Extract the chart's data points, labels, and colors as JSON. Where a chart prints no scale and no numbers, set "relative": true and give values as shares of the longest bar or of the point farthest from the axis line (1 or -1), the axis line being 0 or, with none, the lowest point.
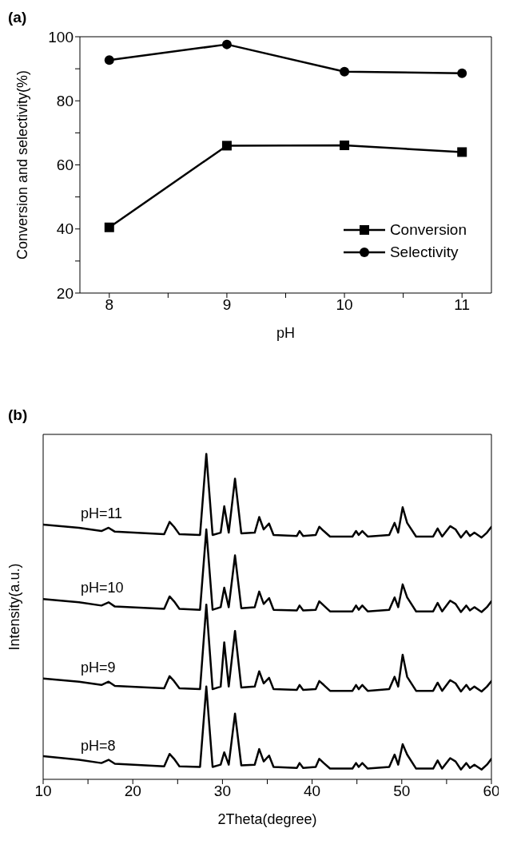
{
  "chart_data": [
    {
      "type": "line",
      "title": "(a)",
      "xlabel": "pH",
      "ylabel": "Conversion and selectivity(%)",
      "x": [
        8,
        9,
        10,
        11
      ],
      "series": [
        {
          "name": "Conversion",
          "color": "#000000",
          "marker": "square",
          "values": [
            40.5,
            66,
            66.1,
            64
          ]
        },
        {
          "name": "Selectivity",
          "color": "#000000",
          "marker": "circle",
          "values": [
            92.7,
            97.6,
            89.1,
            88.6
          ]
        }
      ],
      "xlim": [
        7.75,
        11.25
      ],
      "xticks": [
        8,
        {
          "value": 8.5,
          "label": null
        },
        9,
        {
          "value": 9.5,
          "label": null
        },
        10,
        {
          "value": 10.5,
          "label": null
        },
        11
      ],
      "ylim": [
        20,
        100
      ],
      "yticks": [
        20,
        {
          "value": 30,
          "label": null
        },
        40,
        {
          "value": 50,
          "label": null
        },
        60,
        {
          "value": 70,
          "label": null
        },
        80,
        {
          "value": 90,
          "label": null
        },
        100
      ],
      "legend": "right",
      "line_style": "solid"
    },
    {
      "type": "line",
      "title": "(b)",
      "xlabel": "2Theta(degree)",
      "ylabel": "Intensity(a.u.)",
      "relative": true,
      "marker": "none",
      "line_style": "solid",
      "legend": false,
      "x": [
        10,
        14,
        16.5,
        17.3,
        18,
        23.5,
        24.1,
        24.6,
        25.2,
        27.5,
        28.2,
        28.9,
        29.8,
        30.2,
        30.7,
        31.4,
        32.1,
        33.6,
        34.1,
        34.6,
        35.2,
        35.7,
        38.3,
        38.6,
        39,
        40.4,
        40.8,
        41.3,
        42,
        44.5,
        44.9,
        45.2,
        45.6,
        46.2,
        48.6,
        49.2,
        49.6,
        50.1,
        50.6,
        51.6,
        53.5,
        54,
        54.5,
        55.4,
        56,
        56.6,
        57.2,
        57.6,
        58.1,
        58.9,
        59.5,
        60
      ],
      "series": [
        {
          "name": "pH=8",
          "color": "#000000",
          "values": [
            0.071,
            0.06,
            0.05,
            0.06,
            0.048,
            0.04,
            0.078,
            0.063,
            0.04,
            0.038,
            0.285,
            0.038,
            0.045,
            0.083,
            0.045,
            0.202,
            0.043,
            0.045,
            0.093,
            0.055,
            0.073,
            0.038,
            0.035,
            0.05,
            0.035,
            0.038,
            0.063,
            0.05,
            0.033,
            0.033,
            0.05,
            0.038,
            0.05,
            0.033,
            0.038,
            0.076,
            0.045,
            0.108,
            0.076,
            0.033,
            0.033,
            0.058,
            0.033,
            0.065,
            0.055,
            0.03,
            0.05,
            0.035,
            0.045,
            0.03,
            0.045,
            0.063
          ]
        },
        {
          "name": "pH=9",
          "color": "#000000",
          "values": [
            0.31,
            0.3,
            0.29,
            0.3,
            0.287,
            0.28,
            0.317,
            0.302,
            0.28,
            0.277,
            0.537,
            0.277,
            0.285,
            0.421,
            0.285,
            0.456,
            0.282,
            0.285,
            0.332,
            0.295,
            0.312,
            0.277,
            0.275,
            0.29,
            0.275,
            0.277,
            0.302,
            0.29,
            0.272,
            0.272,
            0.29,
            0.277,
            0.29,
            0.272,
            0.277,
            0.315,
            0.285,
            0.383,
            0.315,
            0.272,
            0.272,
            0.297,
            0.272,
            0.305,
            0.295,
            0.27,
            0.29,
            0.275,
            0.285,
            0.27,
            0.285,
            0.302
          ]
        },
        {
          "name": "pH=10",
          "color": "#000000",
          "values": [
            0.554,
            0.544,
            0.534,
            0.544,
            0.531,
            0.524,
            0.562,
            0.547,
            0.524,
            0.521,
            0.768,
            0.521,
            0.529,
            0.589,
            0.529,
            0.688,
            0.526,
            0.529,
            0.577,
            0.539,
            0.557,
            0.521,
            0.519,
            0.534,
            0.519,
            0.521,
            0.547,
            0.534,
            0.516,
            0.516,
            0.534,
            0.521,
            0.534,
            0.516,
            0.521,
            0.559,
            0.529,
            0.599,
            0.559,
            0.516,
            0.516,
            0.542,
            0.516,
            0.549,
            0.539,
            0.514,
            0.534,
            0.519,
            0.529,
            0.514,
            0.529,
            0.547
          ]
        },
        {
          "name": "pH=11",
          "color": "#000000",
          "values": [
            0.783,
            0.773,
            0.763,
            0.773,
            0.761,
            0.753,
            0.791,
            0.776,
            0.753,
            0.751,
            1,
            0.751,
            0.758,
            0.839,
            0.758,
            0.924,
            0.756,
            0.758,
            0.806,
            0.768,
            0.786,
            0.751,
            0.748,
            0.763,
            0.748,
            0.751,
            0.776,
            0.763,
            0.746,
            0.746,
            0.763,
            0.751,
            0.763,
            0.746,
            0.751,
            0.788,
            0.758,
            0.836,
            0.788,
            0.746,
            0.746,
            0.771,
            0.746,
            0.778,
            0.768,
            0.743,
            0.763,
            0.748,
            0.758,
            0.743,
            0.758,
            0.776
          ]
        }
      ],
      "xlim": [
        10,
        60
      ],
      "xticks": [
        10,
        {
          "value": 15,
          "label": null
        },
        20,
        {
          "value": 25,
          "label": null
        },
        30,
        {
          "value": 35,
          "label": null
        },
        40,
        {
          "value": 45,
          "label": null
        },
        50,
        {
          "value": 55,
          "label": null
        },
        60
      ]
    }
  ]
}
